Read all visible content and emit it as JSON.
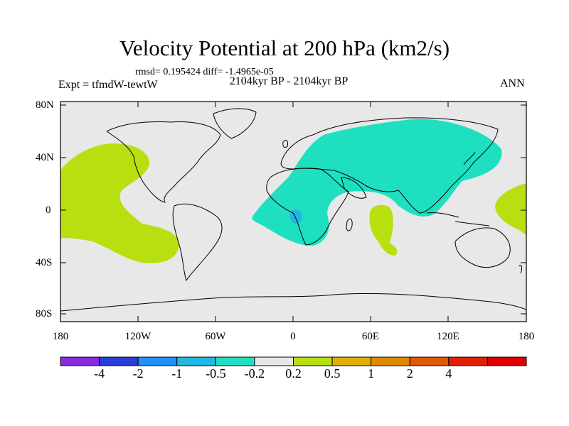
{
  "title": "Velocity Potential at 200 hPa (km2/s)",
  "stats": "rmsd= 0.195424 diff= -1.4965e-05",
  "period": "2104kyr BP - 2104kyr BP",
  "experiment": "Expt = tfmdW-tewtW",
  "season": "ANN",
  "colors": {
    "background": "#e8e8e8",
    "land_line": "#000000",
    "negative_light": "#1ee0c0",
    "negative_mid": "#20b8e0",
    "positive_light": "#b8e010"
  },
  "map": {
    "lat_ticks": [
      "80N",
      "40N",
      "0",
      "40S",
      "80S"
    ],
    "lon_ticks": [
      "180",
      "120W",
      "60W",
      "0",
      "60E",
      "120E",
      "180"
    ]
  },
  "colorbar": {
    "colors": [
      "#8a2be2",
      "#2a3ed8",
      "#1e90ff",
      "#20b8e0",
      "#1ee0c0",
      "#e8e8e8",
      "#b8e010",
      "#e0b000",
      "#e08a00",
      "#e05a00",
      "#e02000",
      "#e00000"
    ],
    "labels": [
      "-4",
      "-2",
      "-1",
      "-0.5",
      "-0.2",
      "0.2",
      "0.5",
      "1",
      "2",
      "4"
    ]
  }
}
